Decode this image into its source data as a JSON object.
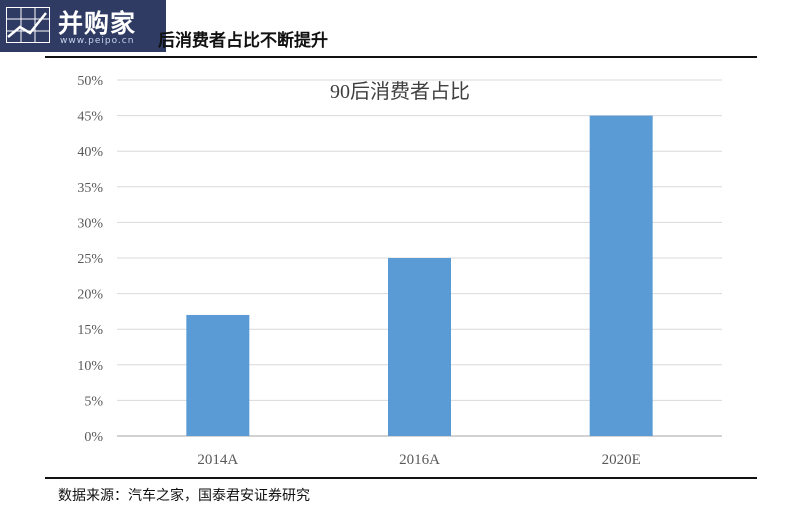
{
  "logo": {
    "name": "并购家",
    "url": "www.peipo.cn"
  },
  "header": {
    "title": "后消费者占比不断提升"
  },
  "chart_data": {
    "type": "bar",
    "title": "90后消费者占比",
    "categories": [
      "2014A",
      "2016A",
      "2020E"
    ],
    "values": [
      17,
      25,
      45
    ],
    "yticks": [
      "0%",
      "5%",
      "10%",
      "15%",
      "20%",
      "25%",
      "30%",
      "35%",
      "40%",
      "45%",
      "50%"
    ],
    "ylim": [
      0,
      50
    ],
    "grid": true,
    "legend": "none",
    "bar_color": "#5b9bd5"
  },
  "footer": {
    "source": "数据来源：汽车之家，国泰君安证券研究"
  }
}
